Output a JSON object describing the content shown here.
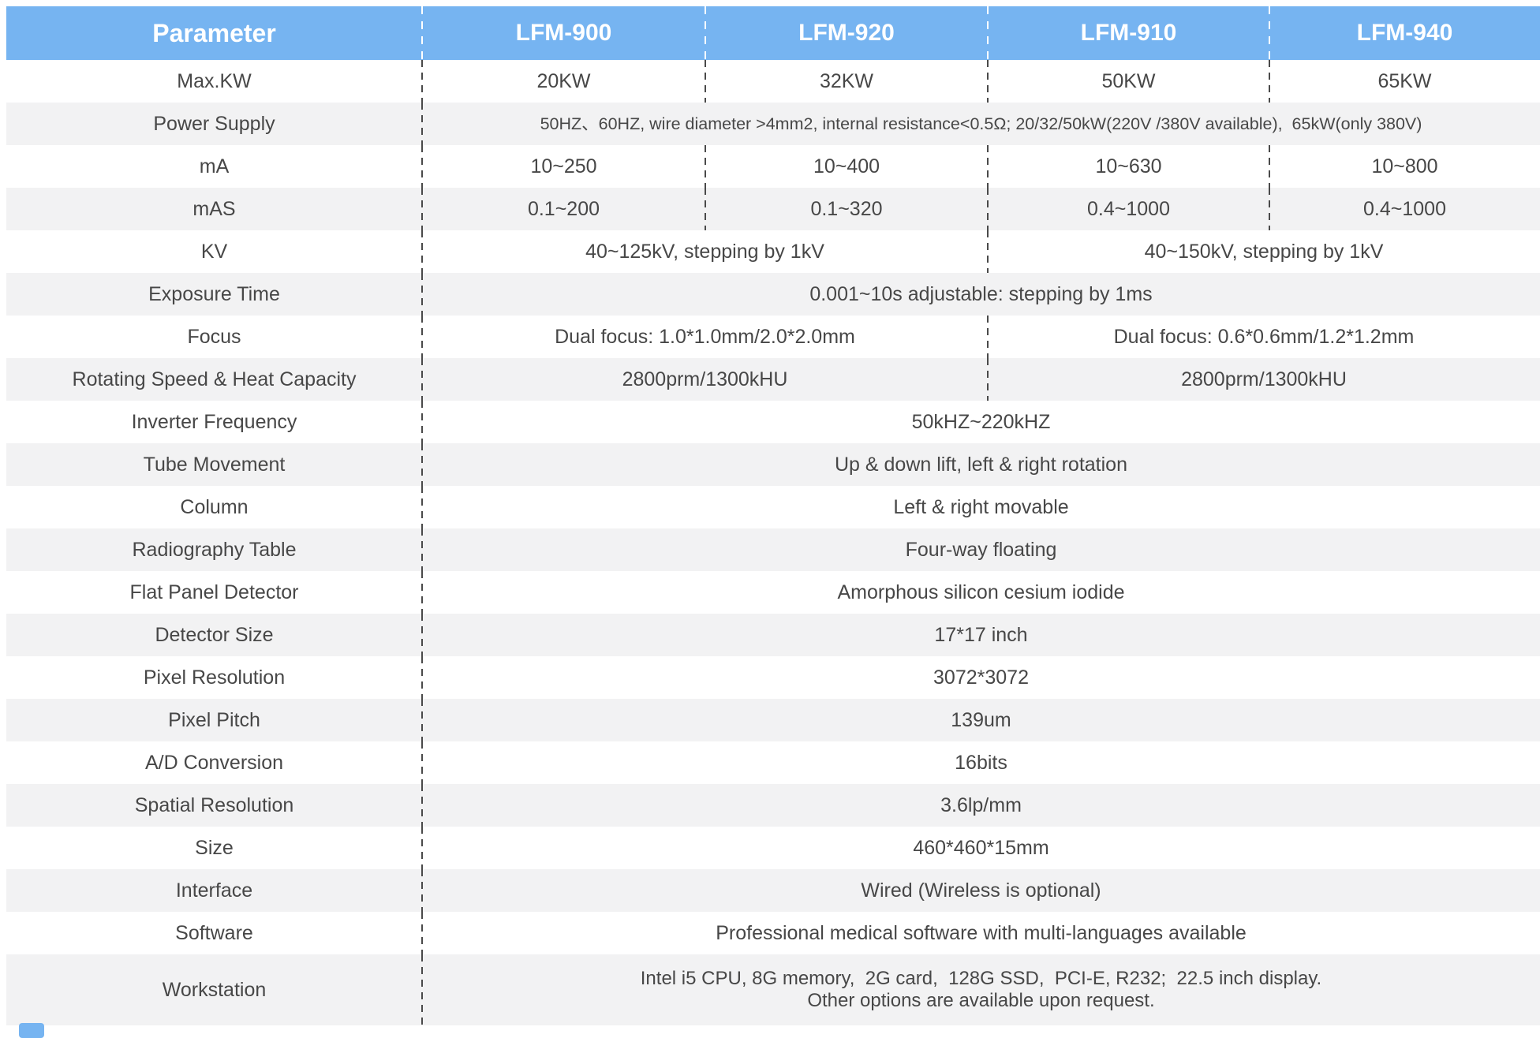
{
  "colors": {
    "header_bg": "#76B4F1",
    "header_text": "#FFFFFF",
    "row_bg": "#FFFFFF",
    "row_alt_bg": "#F2F2F3",
    "body_text": "#474747",
    "divider": "#4A4A4A"
  },
  "header": {
    "parameter_label": "Parameter",
    "models": [
      "LFM-900",
      "LFM-920",
      "LFM-910",
      "LFM-940"
    ]
  },
  "rows": [
    {
      "label": "Max.KW",
      "type": "per-model",
      "values": [
        "20KW",
        "32KW",
        "50KW",
        "65KW"
      ]
    },
    {
      "label": "Power Supply",
      "type": "full",
      "value": "50HZ、60HZ, wire diameter >4mm2, internal resistance<0.5Ω; 20/32/50kW(220V /380V available),  65kW(only 380V)"
    },
    {
      "label": "mA",
      "type": "per-model",
      "values": [
        "10~250",
        "10~400",
        "10~630",
        "10~800"
      ]
    },
    {
      "label": "mAS",
      "type": "per-model",
      "values": [
        "0.1~200",
        "0.1~320",
        "0.4~1000",
        "0.4~1000"
      ]
    },
    {
      "label": "KV",
      "type": "pair",
      "values": [
        "40~125kV, stepping by 1kV",
        "40~150kV, stepping by 1kV"
      ]
    },
    {
      "label": "Exposure Time",
      "type": "full",
      "value": "0.001~10s adjustable: stepping by 1ms"
    },
    {
      "label": "Focus",
      "type": "pair",
      "values": [
        "Dual focus: 1.0*1.0mm/2.0*2.0mm",
        "Dual focus: 0.6*0.6mm/1.2*1.2mm"
      ]
    },
    {
      "label": "Rotating Speed & Heat Capacity",
      "type": "pair",
      "values": [
        "2800prm/1300kHU",
        "2800prm/1300kHU"
      ]
    },
    {
      "label": "Inverter Frequency",
      "type": "full",
      "value": "50kHZ~220kHZ"
    },
    {
      "label": "Tube Movement",
      "type": "full",
      "value": "Up & down lift, left & right rotation"
    },
    {
      "label": "Column",
      "type": "full",
      "value": "Left & right movable"
    },
    {
      "label": "Radiography Table",
      "type": "full",
      "value": "Four-way floating"
    },
    {
      "label": "Flat Panel Detector",
      "type": "full",
      "value": "Amorphous silicon cesium iodide"
    },
    {
      "label": "Detector Size",
      "type": "full",
      "value": "17*17 inch"
    },
    {
      "label": "Pixel Resolution",
      "type": "full",
      "value": "3072*3072"
    },
    {
      "label": "Pixel Pitch",
      "type": "full",
      "value": "139um"
    },
    {
      "label": "A/D Conversion",
      "type": "full",
      "value": "16bits"
    },
    {
      "label": "Spatial Resolution",
      "type": "full",
      "value": "3.6lp/mm"
    },
    {
      "label": "Size",
      "type": "full",
      "value": "460*460*15mm"
    },
    {
      "label": "Interface",
      "type": "full",
      "value": "Wired (Wireless is optional)"
    },
    {
      "label": "Software",
      "type": "full",
      "value": "Professional medical software with multi-languages available"
    },
    {
      "label": "Workstation",
      "type": "full",
      "value_lines": [
        "Intel i5 CPU, 8G memory,  2G card,  128G SSD,  PCI-E, R232;  22.5 inch display.",
        "Other options are available upon request."
      ]
    }
  ]
}
